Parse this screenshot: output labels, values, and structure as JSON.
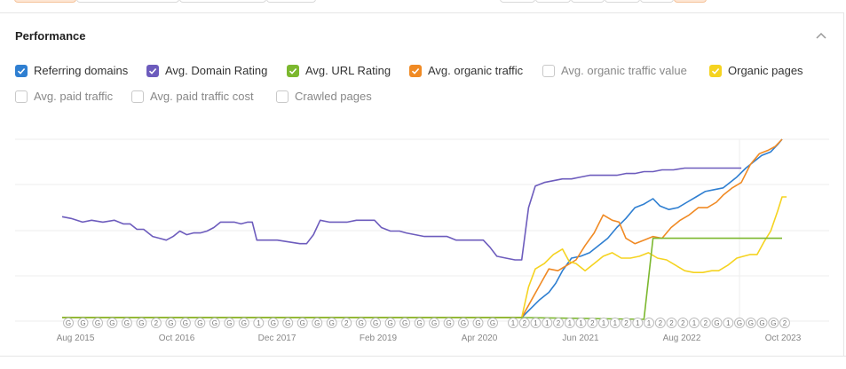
{
  "section_title": "Performance",
  "legend": [
    {
      "label": "Referring domains",
      "checked": true,
      "color": "#2f7fd1"
    },
    {
      "label": "Avg. Domain Rating",
      "checked": true,
      "color": "#6d5cbd"
    },
    {
      "label": "Avg. URL Rating",
      "checked": true,
      "color": "#7cb82f"
    },
    {
      "label": "Avg. organic traffic",
      "checked": true,
      "color": "#f08a24"
    },
    {
      "label": "Avg. organic traffic value",
      "checked": false,
      "color": ""
    },
    {
      "label": "Organic pages",
      "checked": true,
      "color": "#f5d320"
    },
    {
      "label": "Avg. paid traffic",
      "checked": false,
      "color": ""
    },
    {
      "label": "Avg. paid traffic cost",
      "checked": false,
      "color": ""
    },
    {
      "label": "Crawled pages",
      "checked": false,
      "color": ""
    }
  ],
  "chart_data": {
    "type": "line",
    "x_ticks": [
      "Aug 2015",
      "Oct 2016",
      "Dec 2017",
      "Feb 2019",
      "Apr 2020",
      "Jun 2021",
      "Aug 2022",
      "Oct 2023"
    ],
    "y_scale": [
      0,
      100
    ],
    "grid": true,
    "series": [
      {
        "name": "Avg. Domain Rating",
        "color": "#6d5cbd",
        "points": [
          [
            0,
            57
          ],
          [
            4,
            56
          ],
          [
            9,
            54
          ],
          [
            13,
            55
          ],
          [
            18,
            54
          ],
          [
            23,
            55
          ],
          [
            27,
            53
          ],
          [
            30,
            53
          ],
          [
            33,
            50
          ],
          [
            36,
            50
          ],
          [
            40,
            46
          ],
          [
            43,
            45
          ],
          [
            46,
            44
          ],
          [
            49,
            46
          ],
          [
            52,
            49
          ],
          [
            55,
            47
          ],
          [
            58,
            48
          ],
          [
            61,
            48
          ],
          [
            64,
            49
          ],
          [
            67,
            51
          ],
          [
            70,
            54
          ],
          [
            73,
            54
          ],
          [
            76,
            54
          ],
          [
            79,
            53
          ],
          [
            82,
            54
          ],
          [
            84,
            54
          ],
          [
            86,
            44
          ],
          [
            90,
            44
          ],
          [
            95,
            44
          ],
          [
            100,
            43
          ],
          [
            105,
            42
          ],
          [
            108,
            42
          ],
          [
            111,
            47
          ],
          [
            114,
            55
          ],
          [
            118,
            54
          ],
          [
            122,
            54
          ],
          [
            126,
            54
          ],
          [
            130,
            55
          ],
          [
            135,
            55
          ],
          [
            138,
            55
          ],
          [
            141,
            51
          ],
          [
            145,
            49
          ],
          [
            149,
            49
          ],
          [
            152,
            48
          ],
          [
            156,
            47
          ],
          [
            160,
            46
          ],
          [
            165,
            46
          ],
          [
            170,
            46
          ],
          [
            174,
            44
          ],
          [
            178,
            44
          ],
          [
            182,
            44
          ],
          [
            186,
            44
          ],
          [
            189,
            40
          ],
          [
            192,
            35
          ],
          [
            196,
            34
          ],
          [
            200,
            33
          ],
          [
            203,
            33
          ],
          [
            206,
            62
          ],
          [
            209,
            74
          ],
          [
            213,
            76
          ],
          [
            217,
            77
          ],
          [
            221,
            78
          ],
          [
            225,
            78
          ],
          [
            229,
            79
          ],
          [
            233,
            80
          ],
          [
            237,
            80
          ],
          [
            241,
            80
          ],
          [
            245,
            80
          ],
          [
            249,
            81
          ],
          [
            253,
            81
          ],
          [
            257,
            82
          ],
          [
            261,
            82
          ],
          [
            265,
            83
          ],
          [
            270,
            83
          ],
          [
            275,
            84
          ],
          [
            280,
            84
          ],
          [
            285,
            84
          ],
          [
            290,
            84
          ],
          [
            295,
            84
          ],
          [
            300,
            84
          ]
        ]
      },
      {
        "name": "Referring domains",
        "color": "#2f7fd1",
        "points": [
          [
            0,
            1
          ],
          [
            203,
            1
          ],
          [
            207,
            6
          ],
          [
            211,
            11
          ],
          [
            215,
            15
          ],
          [
            218,
            20
          ],
          [
            221,
            27
          ],
          [
            225,
            34
          ],
          [
            229,
            35
          ],
          [
            233,
            37
          ],
          [
            237,
            41
          ],
          [
            241,
            45
          ],
          [
            245,
            51
          ],
          [
            249,
            56
          ],
          [
            253,
            62
          ],
          [
            257,
            64
          ],
          [
            261,
            67
          ],
          [
            264,
            63
          ],
          [
            268,
            61
          ],
          [
            272,
            62
          ],
          [
            276,
            65
          ],
          [
            280,
            68
          ],
          [
            284,
            71
          ],
          [
            288,
            72
          ],
          [
            292,
            73
          ],
          [
            295,
            76
          ],
          [
            298,
            79
          ],
          [
            302,
            84
          ],
          [
            305,
            87
          ],
          [
            309,
            91
          ],
          [
            313,
            93
          ],
          [
            316,
            97
          ],
          [
            318,
            100
          ]
        ]
      },
      {
        "name": "Avg. organic traffic",
        "color": "#f08a24",
        "points": [
          [
            0,
            1
          ],
          [
            203,
            1
          ],
          [
            207,
            10
          ],
          [
            211,
            19
          ],
          [
            215,
            28
          ],
          [
            219,
            27
          ],
          [
            223,
            30
          ],
          [
            227,
            33
          ],
          [
            231,
            41
          ],
          [
            235,
            48
          ],
          [
            239,
            58
          ],
          [
            243,
            55
          ],
          [
            246,
            54
          ],
          [
            249,
            45
          ],
          [
            253,
            42
          ],
          [
            257,
            44
          ],
          [
            261,
            46
          ],
          [
            265,
            45
          ],
          [
            269,
            51
          ],
          [
            273,
            55
          ],
          [
            277,
            58
          ],
          [
            281,
            62
          ],
          [
            285,
            62
          ],
          [
            289,
            65
          ],
          [
            292,
            69
          ],
          [
            296,
            73
          ],
          [
            300,
            76
          ],
          [
            304,
            86
          ],
          [
            308,
            92
          ],
          [
            312,
            94
          ],
          [
            315,
            96
          ],
          [
            318,
            100
          ]
        ]
      },
      {
        "name": "Organic pages",
        "color": "#f5d320",
        "points": [
          [
            0,
            1
          ],
          [
            203,
            1
          ],
          [
            206,
            18
          ],
          [
            209,
            28
          ],
          [
            213,
            31
          ],
          [
            217,
            36
          ],
          [
            221,
            39
          ],
          [
            224,
            32
          ],
          [
            227,
            31
          ],
          [
            231,
            27
          ],
          [
            235,
            31
          ],
          [
            239,
            35
          ],
          [
            243,
            37
          ],
          [
            247,
            34
          ],
          [
            251,
            34
          ],
          [
            255,
            35
          ],
          [
            259,
            37
          ],
          [
            263,
            34
          ],
          [
            267,
            33
          ],
          [
            271,
            30
          ],
          [
            275,
            27
          ],
          [
            279,
            26
          ],
          [
            283,
            26
          ],
          [
            287,
            27
          ],
          [
            290,
            27
          ],
          [
            294,
            30
          ],
          [
            298,
            34
          ],
          [
            301,
            35
          ],
          [
            304,
            36
          ],
          [
            307,
            36
          ],
          [
            310,
            43
          ],
          [
            313,
            49
          ],
          [
            316,
            60
          ],
          [
            318,
            68
          ],
          [
            320,
            68
          ]
        ]
      },
      {
        "name": "Avg. URL Rating",
        "color": "#7cb82f",
        "points": [
          [
            0,
            1
          ],
          [
            203,
            1
          ],
          [
            257,
            0
          ],
          [
            261,
            45
          ],
          [
            290,
            45
          ],
          [
            318,
            45
          ]
        ]
      }
    ],
    "markers": [
      "G",
      "G",
      "G",
      "G",
      "G",
      "G",
      "2",
      "G",
      "G",
      "G",
      "G",
      "G",
      "G",
      "1",
      "G",
      "G",
      "G",
      "G",
      "G",
      "2",
      "G",
      "G",
      "G",
      "G",
      "G",
      "G",
      "G",
      "G",
      "G",
      "G",
      "1",
      "2",
      "1",
      "1",
      "2",
      "1",
      "1",
      "2",
      "1",
      "1",
      "2",
      "1",
      "1",
      "2",
      "2",
      "2",
      "1",
      "2",
      "G",
      "1",
      "G",
      "G",
      "G",
      "G",
      "2"
    ]
  }
}
